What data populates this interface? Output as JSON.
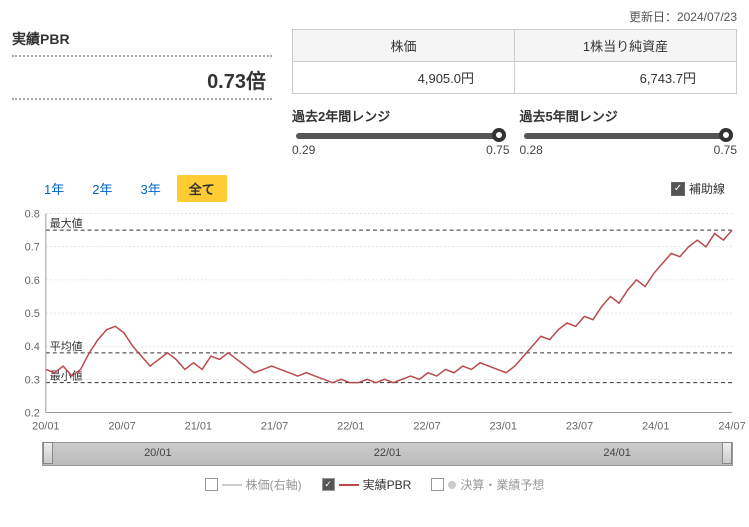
{
  "update_date": "更新日：2024/07/23",
  "pbr": {
    "label": "実績PBR",
    "value": "0.73倍"
  },
  "metrics": {
    "price_label": "株価",
    "price_value": "4,905.0円",
    "bps_label": "1株当り純資産",
    "bps_value": "6,743.7円"
  },
  "ranges": {
    "r2y": {
      "title": "過去2年間レンジ",
      "min": "0.29",
      "max": "0.75",
      "pos": 1.0
    },
    "r5y": {
      "title": "過去5年間レンジ",
      "min": "0.28",
      "max": "0.75",
      "pos": 1.0
    }
  },
  "periods": {
    "p1": "1年",
    "p2": "2年",
    "p3": "3年",
    "all": "全て"
  },
  "aux_label": "補助線",
  "chart": {
    "ylim": [
      0.2,
      0.8
    ],
    "yticks": [
      0.2,
      0.3,
      0.4,
      0.5,
      0.6,
      0.7,
      0.8
    ],
    "xticks": [
      "20/01",
      "20/07",
      "21/01",
      "21/07",
      "22/01",
      "22/07",
      "23/01",
      "23/07",
      "24/01",
      "24/07"
    ],
    "ref_max": {
      "label": "最大値",
      "y": 0.75
    },
    "ref_avg": {
      "label": "平均値",
      "y": 0.38
    },
    "ref_min": {
      "label": "最小値",
      "y": 0.29
    },
    "line_color": "#b84a4a",
    "series": [
      0.33,
      0.32,
      0.34,
      0.31,
      0.33,
      0.38,
      0.42,
      0.45,
      0.46,
      0.44,
      0.4,
      0.37,
      0.34,
      0.36,
      0.38,
      0.36,
      0.33,
      0.35,
      0.33,
      0.37,
      0.36,
      0.38,
      0.36,
      0.34,
      0.32,
      0.33,
      0.34,
      0.33,
      0.32,
      0.31,
      0.32,
      0.31,
      0.3,
      0.29,
      0.3,
      0.29,
      0.29,
      0.3,
      0.29,
      0.3,
      0.29,
      0.3,
      0.31,
      0.3,
      0.32,
      0.31,
      0.33,
      0.32,
      0.34,
      0.33,
      0.35,
      0.34,
      0.33,
      0.32,
      0.34,
      0.37,
      0.4,
      0.43,
      0.42,
      0.45,
      0.47,
      0.46,
      0.49,
      0.48,
      0.52,
      0.55,
      0.53,
      0.57,
      0.6,
      0.58,
      0.62,
      0.65,
      0.68,
      0.67,
      0.7,
      0.72,
      0.7,
      0.74,
      0.72,
      0.75
    ]
  },
  "navigator": {
    "labels": [
      "20/01",
      "22/01",
      "24/01"
    ]
  },
  "legend": {
    "price": "株価(右軸)",
    "pbr": "実績PBR",
    "forecast": "決算・業績予想",
    "price_color": "#ccc",
    "pbr_color": "#b84a4a",
    "forecast_color": "#ccc"
  }
}
